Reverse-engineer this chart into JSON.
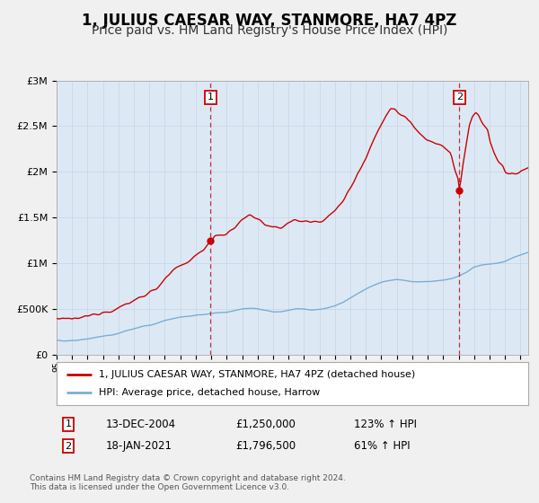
{
  "title": "1, JULIUS CAESAR WAY, STANMORE, HA7 4PZ",
  "subtitle": "Price paid vs. HM Land Registry's House Price Index (HPI)",
  "red_label": "1, JULIUS CAESAR WAY, STANMORE, HA7 4PZ (detached house)",
  "blue_label": "HPI: Average price, detached house, Harrow",
  "annotation1_label": "1",
  "annotation1_date": "13-DEC-2004",
  "annotation1_price": "£1,250,000",
  "annotation1_hpi": "123% ↑ HPI",
  "annotation2_label": "2",
  "annotation2_date": "18-JAN-2021",
  "annotation2_price": "£1,796,500",
  "annotation2_hpi": "61% ↑ HPI",
  "footer": "Contains HM Land Registry data © Crown copyright and database right 2024.\nThis data is licensed under the Open Government Licence v3.0.",
  "vline1_x": 2004.96,
  "vline2_x": 2021.05,
  "marker1_red_x": 2004.96,
  "marker1_red_y": 1250000,
  "marker2_red_x": 2021.05,
  "marker2_red_y": 1796500,
  "ylim": [
    0,
    3000000
  ],
  "xlim_start": 1995.0,
  "xlim_end": 2025.5,
  "background_color": "#f0f0f0",
  "plot_bg_color": "#dce9f5",
  "red_color": "#cc0000",
  "blue_color": "#7aaed4",
  "vline_color": "#cc0000",
  "grid_color": "#c8d8e8",
  "title_fontsize": 12,
  "subtitle_fontsize": 10
}
